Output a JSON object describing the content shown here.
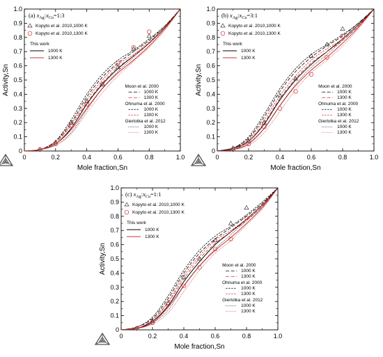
{
  "chart_data": [
    {
      "type": "line",
      "panel_label": "(a) x<sub>Ag</sub>:x<sub>Cu</sub>=1:3",
      "panel_title_parts": [
        "(a) ",
        "x",
        "Ag",
        ":",
        "x",
        "Cu",
        "=1:3"
      ],
      "xlabel": "Mole fraction,Sn",
      "ylabel": "Activity,Sn",
      "xlim": [
        0,
        1
      ],
      "ylim": [
        0,
        1
      ],
      "xticks": [
        "0",
        "0.2",
        "0.4",
        "0.6",
        "0.8",
        "1.0"
      ],
      "yticks": [
        "0",
        "0.1",
        "0.2",
        "0.3",
        "0.4",
        "0.5",
        "0.6",
        "0.7",
        "0.8",
        "0.9",
        "1.0"
      ],
      "legend": {
        "exp1": "Kopyto et al. 2010,1000 K",
        "exp2": "Kopyto et al. 2010,1300 K",
        "this_work": "This work",
        "moon": "Moon et al. 2000",
        "ohnuma": "Ohnuma et al. 2000",
        "gierlotka": "Gierlotka et al. 2012",
        "t1000": "1000 K",
        "t1300": "1300 K"
      },
      "experimental": {
        "kopyto_1000K": {
          "x": [
            0.1,
            0.2,
            0.3,
            0.4,
            0.5,
            0.6,
            0.7,
            0.8
          ],
          "y": [
            0.01,
            0.06,
            0.2,
            0.35,
            0.47,
            0.59,
            0.72,
            0.81
          ]
        },
        "kopyto_1300K": {
          "x": [
            0.1,
            0.2,
            0.3,
            0.4,
            0.5,
            0.6,
            0.7,
            0.8
          ],
          "y": [
            0.01,
            0.05,
            0.18,
            0.33,
            0.47,
            0.62,
            0.73,
            0.84
          ]
        }
      },
      "series": [
        {
          "name": "This work 1000 K",
          "color": "#000000",
          "dash": "solid",
          "x": [
            0,
            0.1,
            0.2,
            0.3,
            0.4,
            0.5,
            0.6,
            0.7,
            0.8,
            0.9,
            1.0
          ],
          "y": [
            0,
            0.01,
            0.05,
            0.16,
            0.33,
            0.47,
            0.58,
            0.67,
            0.76,
            0.87,
            1.0
          ]
        },
        {
          "name": "This work 1300 K",
          "color": "#d32f2f",
          "dash": "solid",
          "x": [
            0,
            0.1,
            0.2,
            0.3,
            0.4,
            0.5,
            0.6,
            0.7,
            0.8,
            0.9,
            1.0
          ],
          "y": [
            0,
            0.01,
            0.05,
            0.15,
            0.3,
            0.44,
            0.55,
            0.64,
            0.74,
            0.86,
            1.0
          ]
        },
        {
          "name": "Moon et al. 2000 1000 K",
          "color": "#000000",
          "dash": "long",
          "x": [
            0,
            0.1,
            0.2,
            0.3,
            0.4,
            0.5,
            0.6,
            0.7,
            0.8,
            0.9,
            1.0
          ],
          "y": [
            0,
            0.01,
            0.07,
            0.2,
            0.38,
            0.52,
            0.62,
            0.7,
            0.78,
            0.88,
            1.0
          ]
        },
        {
          "name": "Moon et al. 2000 1300 K",
          "color": "#d32f2f",
          "dash": "long",
          "x": [
            0,
            0.1,
            0.2,
            0.3,
            0.4,
            0.5,
            0.6,
            0.7,
            0.8,
            0.9,
            1.0
          ],
          "y": [
            0,
            0.01,
            0.06,
            0.18,
            0.34,
            0.48,
            0.59,
            0.67,
            0.76,
            0.87,
            1.0
          ]
        },
        {
          "name": "Ohnuma et al. 2000 1000 K",
          "color": "#000000",
          "dash": "short",
          "x": [
            0,
            0.1,
            0.2,
            0.3,
            0.4,
            0.5,
            0.6,
            0.7,
            0.8,
            0.9,
            1.0
          ],
          "y": [
            0,
            0.01,
            0.07,
            0.22,
            0.4,
            0.54,
            0.64,
            0.71,
            0.79,
            0.88,
            1.0
          ]
        },
        {
          "name": "Ohnuma et al. 2000 1300 K",
          "color": "#d32f2f",
          "dash": "short",
          "x": [
            0,
            0.1,
            0.2,
            0.3,
            0.4,
            0.5,
            0.6,
            0.7,
            0.8,
            0.9,
            1.0
          ],
          "y": [
            0,
            0.01,
            0.06,
            0.19,
            0.36,
            0.5,
            0.61,
            0.68,
            0.77,
            0.87,
            1.0
          ]
        },
        {
          "name": "Gierlotka et al. 2012 1000 K",
          "color": "#000000",
          "dash": "dot",
          "x": [
            0,
            0.1,
            0.2,
            0.3,
            0.4,
            0.5,
            0.6,
            0.7,
            0.8,
            0.9,
            1.0
          ],
          "y": [
            0,
            0.01,
            0.04,
            0.13,
            0.29,
            0.44,
            0.56,
            0.66,
            0.76,
            0.87,
            1.0
          ]
        },
        {
          "name": "Gierlotka et al. 2012 1300 K",
          "color": "#d32f2f",
          "dash": "dot",
          "x": [
            0,
            0.1,
            0.2,
            0.3,
            0.4,
            0.5,
            0.6,
            0.7,
            0.8,
            0.9,
            1.0
          ],
          "y": [
            0,
            0.01,
            0.04,
            0.12,
            0.27,
            0.41,
            0.53,
            0.63,
            0.73,
            0.85,
            1.0
          ]
        }
      ]
    },
    {
      "type": "line",
      "panel_title_parts": [
        "(b) ",
        "x",
        "Ag",
        ":",
        "x",
        "Cu",
        "=3:1"
      ],
      "xlabel": "Mole fraction,Sn",
      "ylabel": "Activity,Sn",
      "xlim": [
        0,
        1
      ],
      "ylim": [
        0,
        1
      ],
      "xticks": [
        "0",
        "0.2",
        "0.4",
        "0.6",
        "0.8",
        "1.0"
      ],
      "yticks": [
        "0",
        "0.1",
        "0.2",
        "0.3",
        "0.4",
        "0.5",
        "0.6",
        "0.7",
        "0.8",
        "0.9",
        "1.0"
      ],
      "legend": {
        "exp1": "Kopyto et al. 2010,1000 K",
        "exp2": "Kopyto et al. 2010,1300 K",
        "this_work": "This work",
        "moon": "Moon et al. 2000",
        "ohnuma": "Ohnuma et al. 2000",
        "gierlotka": "Gierlotka et al. 2012",
        "t1000": "1000 K",
        "t1300": "1300 K"
      },
      "experimental": {
        "kopyto_1000K": {
          "x": [
            0.1,
            0.2,
            0.3,
            0.4,
            0.5,
            0.6,
            0.7,
            0.8
          ],
          "y": [
            0.02,
            0.07,
            0.2,
            0.39,
            0.51,
            0.67,
            0.75,
            0.86
          ]
        },
        "kopyto_1300K": {
          "x": [
            0.1,
            0.2,
            0.3,
            0.4,
            0.5,
            0.6,
            0.7,
            0.8
          ],
          "y": [
            0.01,
            0.05,
            0.17,
            0.3,
            0.42,
            0.54,
            0.66,
            0.81
          ]
        }
      },
      "series": [
        {
          "name": "This work 1000 K",
          "color": "#000000",
          "dash": "solid",
          "x": [
            0,
            0.1,
            0.2,
            0.3,
            0.4,
            0.5,
            0.6,
            0.7,
            0.8,
            0.9,
            1.0
          ],
          "y": [
            0,
            0.02,
            0.07,
            0.19,
            0.36,
            0.5,
            0.61,
            0.7,
            0.79,
            0.89,
            1.0
          ]
        },
        {
          "name": "This work 1300 K",
          "color": "#d32f2f",
          "dash": "solid",
          "x": [
            0,
            0.1,
            0.2,
            0.3,
            0.4,
            0.5,
            0.6,
            0.7,
            0.8,
            0.9,
            1.0
          ],
          "y": [
            0,
            0.01,
            0.05,
            0.16,
            0.32,
            0.46,
            0.57,
            0.66,
            0.76,
            0.87,
            1.0
          ]
        },
        {
          "name": "Moon et al. 2000 1000 K",
          "color": "#000000",
          "dash": "long",
          "x": [
            0,
            0.1,
            0.2,
            0.3,
            0.4,
            0.5,
            0.6,
            0.7,
            0.8,
            0.9,
            1.0
          ],
          "y": [
            0,
            0.02,
            0.09,
            0.24,
            0.42,
            0.56,
            0.66,
            0.74,
            0.81,
            0.9,
            1.0
          ]
        },
        {
          "name": "Moon et al. 2000 1300 K",
          "color": "#d32f2f",
          "dash": "long",
          "x": [
            0,
            0.1,
            0.2,
            0.3,
            0.4,
            0.5,
            0.6,
            0.7,
            0.8,
            0.9,
            1.0
          ],
          "y": [
            0,
            0.01,
            0.07,
            0.2,
            0.37,
            0.51,
            0.62,
            0.7,
            0.78,
            0.88,
            1.0
          ]
        },
        {
          "name": "Ohnuma et al. 2000 1000 K",
          "color": "#000000",
          "dash": "short",
          "x": [
            0,
            0.1,
            0.2,
            0.3,
            0.4,
            0.5,
            0.6,
            0.7,
            0.8,
            0.9,
            1.0
          ],
          "y": [
            0,
            0.02,
            0.1,
            0.26,
            0.44,
            0.58,
            0.68,
            0.75,
            0.82,
            0.9,
            1.0
          ]
        },
        {
          "name": "Ohnuma et al. 2000 1300 K",
          "color": "#d32f2f",
          "dash": "short",
          "x": [
            0,
            0.1,
            0.2,
            0.3,
            0.4,
            0.5,
            0.6,
            0.7,
            0.8,
            0.9,
            1.0
          ],
          "y": [
            0,
            0.01,
            0.08,
            0.22,
            0.39,
            0.53,
            0.64,
            0.72,
            0.79,
            0.89,
            1.0
          ]
        },
        {
          "name": "Gierlotka et al. 2012 1000 K",
          "color": "#000000",
          "dash": "dot",
          "x": [
            0,
            0.1,
            0.2,
            0.3,
            0.4,
            0.5,
            0.6,
            0.7,
            0.8,
            0.9,
            1.0
          ],
          "y": [
            0,
            0.01,
            0.06,
            0.16,
            0.32,
            0.47,
            0.59,
            0.68,
            0.78,
            0.88,
            1.0
          ]
        },
        {
          "name": "Gierlotka et al. 2012 1300 K",
          "color": "#d32f2f",
          "dash": "dot",
          "x": [
            0,
            0.1,
            0.2,
            0.3,
            0.4,
            0.5,
            0.6,
            0.7,
            0.8,
            0.9,
            1.0
          ],
          "y": [
            0,
            0.01,
            0.04,
            0.13,
            0.28,
            0.43,
            0.55,
            0.64,
            0.74,
            0.86,
            1.0
          ]
        }
      ]
    },
    {
      "type": "line",
      "panel_title_parts": [
        "(c) ",
        "x",
        "Ag",
        ":",
        "x",
        "Cu",
        "=1:1"
      ],
      "xlabel": "Mole fraction,Sn",
      "ylabel": "Activity,Sn",
      "xlim": [
        0,
        1
      ],
      "ylim": [
        0,
        1
      ],
      "xticks": [
        "0",
        "0.2",
        "0.4",
        "0.6",
        "0.8",
        "1.0"
      ],
      "yticks": [
        "0",
        "0.1",
        "0.2",
        "0.3",
        "0.4",
        "0.5",
        "0.6",
        "0.7",
        "0.8",
        "0.9",
        "1.0"
      ],
      "legend": {
        "exp1": "Kopyto et al. 2010,1000 K",
        "exp2": "Kopyto et al. 2010,1300 K",
        "this_work": "This work",
        "moon": "Moon et al. 2000",
        "ohnuma": "Ohnuma et al. 2000",
        "gierlotka": "Gierlotka et al. 2012",
        "t1000": "1000 K",
        "t1300": "1300 K"
      },
      "experimental": {
        "kopyto_1000K": {
          "x": [
            0.1,
            0.2,
            0.3,
            0.4,
            0.5,
            0.6,
            0.7,
            0.8
          ],
          "y": [
            0.01,
            0.06,
            0.19,
            0.37,
            0.5,
            0.63,
            0.75,
            0.86
          ]
        },
        "kopyto_1300K": {
          "x": [
            0.1,
            0.2,
            0.3,
            0.4,
            0.5,
            0.6,
            0.7,
            0.8
          ],
          "y": [
            0.01,
            0.05,
            0.18,
            0.31,
            0.44,
            0.57,
            0.64,
            0.79
          ]
        }
      },
      "series": [
        {
          "name": "This work 1000 K",
          "color": "#000000",
          "dash": "solid",
          "x": [
            0,
            0.1,
            0.2,
            0.3,
            0.4,
            0.5,
            0.6,
            0.7,
            0.8,
            0.9,
            1.0
          ],
          "y": [
            0,
            0.01,
            0.06,
            0.17,
            0.34,
            0.48,
            0.6,
            0.69,
            0.78,
            0.88,
            1.0
          ]
        },
        {
          "name": "This work 1300 K",
          "color": "#d32f2f",
          "dash": "solid",
          "x": [
            0,
            0.1,
            0.2,
            0.3,
            0.4,
            0.5,
            0.6,
            0.7,
            0.8,
            0.9,
            1.0
          ],
          "y": [
            0,
            0.01,
            0.05,
            0.16,
            0.31,
            0.45,
            0.56,
            0.65,
            0.75,
            0.86,
            1.0
          ]
        },
        {
          "name": "Moon et al. 2000 1000 K",
          "color": "#000000",
          "dash": "long",
          "x": [
            0,
            0.1,
            0.2,
            0.3,
            0.4,
            0.5,
            0.6,
            0.7,
            0.8,
            0.9,
            1.0
          ],
          "y": [
            0,
            0.02,
            0.08,
            0.22,
            0.4,
            0.54,
            0.64,
            0.72,
            0.8,
            0.89,
            1.0
          ]
        },
        {
          "name": "Moon et al. 2000 1300 K",
          "color": "#d32f2f",
          "dash": "long",
          "x": [
            0,
            0.1,
            0.2,
            0.3,
            0.4,
            0.5,
            0.6,
            0.7,
            0.8,
            0.9,
            1.0
          ],
          "y": [
            0,
            0.01,
            0.07,
            0.19,
            0.36,
            0.5,
            0.61,
            0.69,
            0.77,
            0.87,
            1.0
          ]
        },
        {
          "name": "Ohnuma et al. 2000 1000 K",
          "color": "#000000",
          "dash": "short",
          "x": [
            0,
            0.1,
            0.2,
            0.3,
            0.4,
            0.5,
            0.6,
            0.7,
            0.8,
            0.9,
            1.0
          ],
          "y": [
            0,
            0.02,
            0.09,
            0.24,
            0.42,
            0.56,
            0.66,
            0.73,
            0.81,
            0.9,
            1.0
          ]
        },
        {
          "name": "Ohnuma et al. 2000 1300 K",
          "color": "#d32f2f",
          "dash": "short",
          "x": [
            0,
            0.1,
            0.2,
            0.3,
            0.4,
            0.5,
            0.6,
            0.7,
            0.8,
            0.9,
            1.0
          ],
          "y": [
            0,
            0.01,
            0.07,
            0.2,
            0.38,
            0.52,
            0.63,
            0.7,
            0.78,
            0.88,
            1.0
          ]
        },
        {
          "name": "Gierlotka et al. 2012 1000 K",
          "color": "#000000",
          "dash": "dot",
          "x": [
            0,
            0.1,
            0.2,
            0.3,
            0.4,
            0.5,
            0.6,
            0.7,
            0.8,
            0.9,
            1.0
          ],
          "y": [
            0,
            0.01,
            0.05,
            0.14,
            0.31,
            0.45,
            0.57,
            0.67,
            0.77,
            0.87,
            1.0
          ]
        },
        {
          "name": "Gierlotka et al. 2012 1300 K",
          "color": "#d32f2f",
          "dash": "dot",
          "x": [
            0,
            0.1,
            0.2,
            0.3,
            0.4,
            0.5,
            0.6,
            0.7,
            0.8,
            0.9,
            1.0
          ],
          "y": [
            0,
            0.01,
            0.04,
            0.12,
            0.27,
            0.42,
            0.54,
            0.63,
            0.74,
            0.85,
            1.0
          ]
        }
      ]
    }
  ]
}
